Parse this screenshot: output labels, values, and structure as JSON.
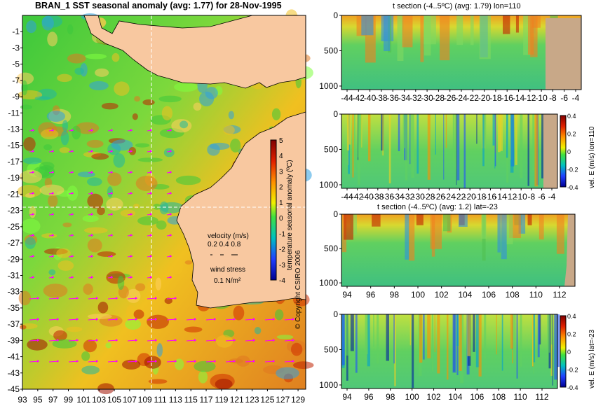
{
  "main_map": {
    "title": "BRAN_1 SST seasonal anomaly (avg: 1.77) for 28-Nov-1995",
    "colorbar_label": "temperature seasonal anomaly (ºC)",
    "velocity_label": "velocity (m/s)",
    "velocity_scale": "0.2 0.4 0.8",
    "wind_label": "wind stress",
    "wind_scale": "0.1 N/m²",
    "copyright": "© Copyright CSIRO 2006",
    "colors": {
      "land": "#f8c8a0",
      "vector": "#ff00ff"
    }
  },
  "chart_data": [
    {
      "type": "heatmap",
      "title": "BRAN_1 SST seasonal anomaly (avg: 1.77) for 28-Nov-1995",
      "x_ticks": [
        "93",
        "95",
        "97",
        "99",
        "101",
        "103",
        "105",
        "107",
        "109",
        "111",
        "113",
        "115",
        "117",
        "119",
        "121",
        "123",
        "125",
        "127",
        "129"
      ],
      "y_ticks": [
        "-1",
        "-3",
        "-5",
        "-7",
        "-9",
        "-11",
        "-13",
        "-15",
        "-17",
        "-19",
        "-21",
        "-23",
        "-25",
        "-27",
        "-29",
        "-31",
        "-33",
        "-35",
        "-37",
        "-39",
        "-41",
        "-43",
        "-45"
      ],
      "xlim": [
        93,
        130
      ],
      "ylim": [
        -45,
        1
      ],
      "colorbar": {
        "label": "temperature seasonal anomaly (ºC)",
        "ticks": [
          "5",
          "4",
          "3",
          "2",
          "1",
          "0",
          "-1",
          "-2",
          "-3",
          "-4"
        ],
        "range": [
          -4,
          5
        ]
      },
      "avg": 1.77
    },
    {
      "type": "heatmap",
      "title": "t section (-4..5ºC) (avg: 1.79) lon=110",
      "x_ticks": [
        "-44",
        "-42",
        "-40",
        "-38",
        "-36",
        "-34",
        "-32",
        "-30",
        "-28",
        "-26",
        "-24",
        "-22",
        "-20",
        "-18",
        "-16",
        "-14",
        "-12",
        "-10",
        "-8",
        "-6",
        "-4"
      ],
      "y_ticks": [
        "0",
        "500",
        "1000"
      ],
      "xlim": [
        -45,
        -3
      ],
      "ylim": [
        1050,
        0
      ]
    },
    {
      "type": "heatmap",
      "title": "",
      "x_ticks": [
        "-44",
        "-42",
        "-40",
        "-38",
        "-36",
        "-34",
        "-32",
        "-30",
        "-28",
        "-26",
        "-24",
        "-22",
        "-20",
        "-18",
        "-16",
        "-14",
        "-12",
        "-10",
        "-8",
        "-6",
        "-4"
      ],
      "y_ticks": [
        "0",
        "500",
        "1000"
      ],
      "colorbar": {
        "label": "vel. E (m/s) lon=110",
        "ticks": [
          "0.4",
          "0.2",
          "0",
          "-0.2",
          "-0.4"
        ],
        "range": [
          -0.4,
          0.4
        ]
      }
    },
    {
      "type": "heatmap",
      "title": "t section (-4..5ºC) (avg: 1.2) lat=-23",
      "x_ticks": [
        "94",
        "96",
        "98",
        "100",
        "102",
        "104",
        "106",
        "108",
        "110",
        "112"
      ],
      "y_ticks": [
        "0",
        "500",
        "1000"
      ],
      "xlim": [
        93,
        114
      ],
      "ylim": [
        1050,
        0
      ]
    },
    {
      "type": "heatmap",
      "title": "",
      "x_ticks": [
        "94",
        "96",
        "98",
        "100",
        "102",
        "104",
        "106",
        "108",
        "110",
        "112"
      ],
      "y_ticks": [
        "0",
        "500",
        "1000"
      ],
      "colorbar": {
        "label": "vel. E (m/s) lat=-23",
        "ticks": [
          "0.4",
          "0.2",
          "0",
          "-0.2",
          "-0.4"
        ],
        "range": [
          -0.4,
          0.4
        ]
      }
    }
  ]
}
